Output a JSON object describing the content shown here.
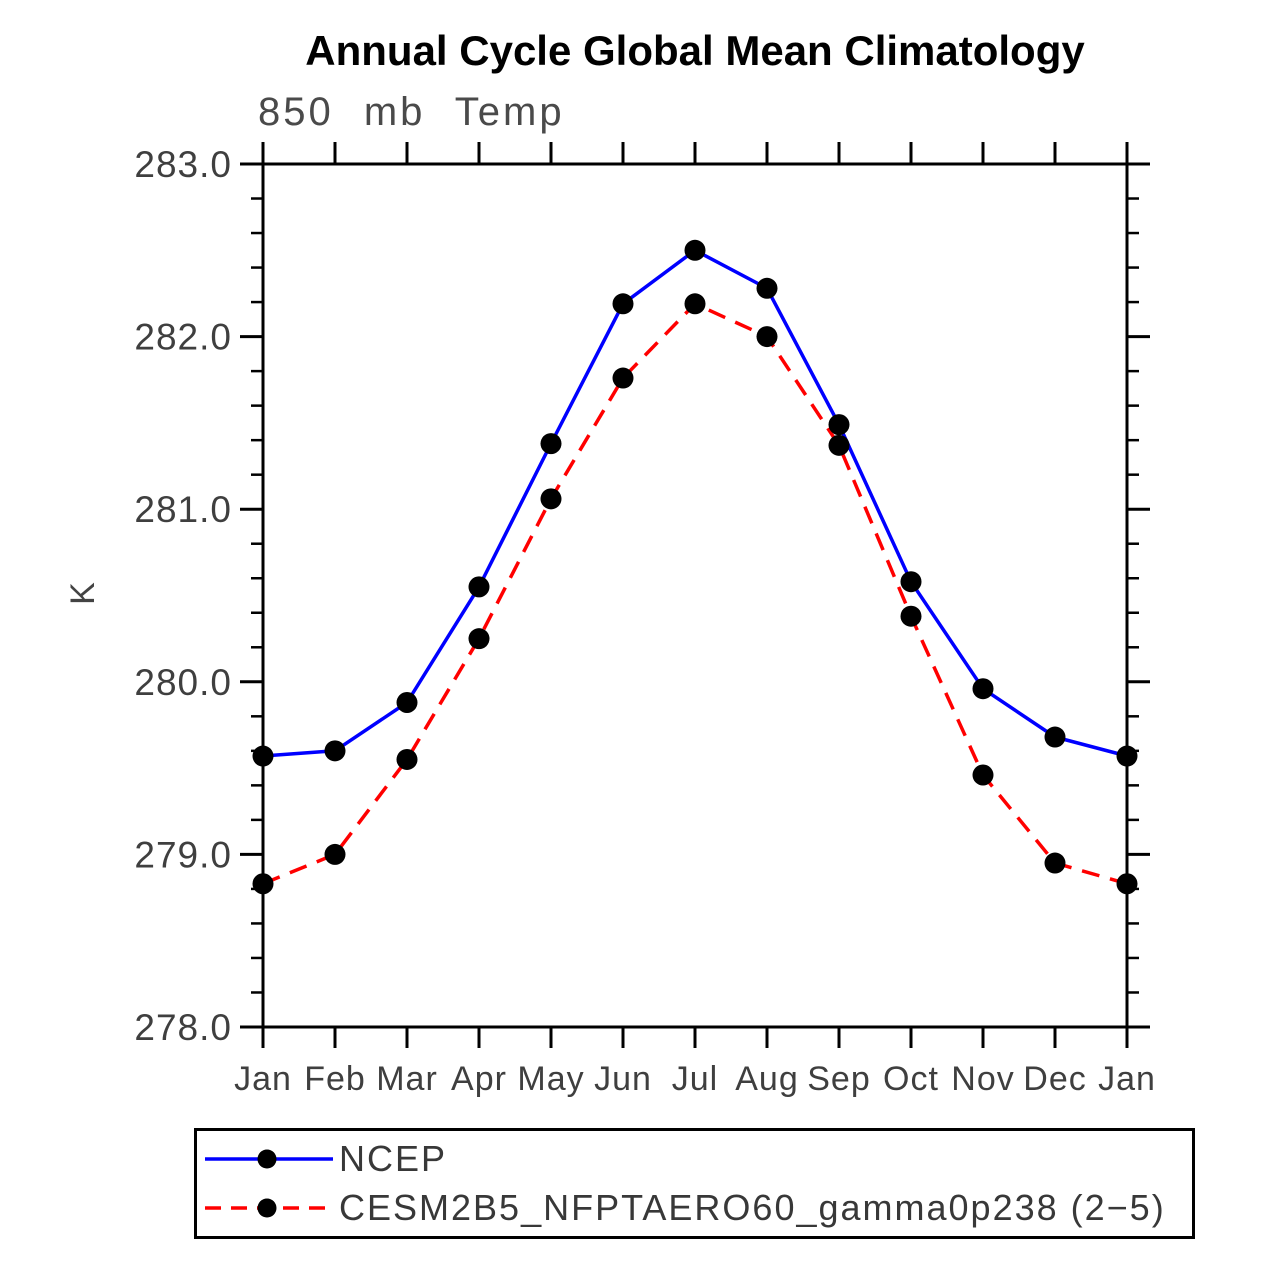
{
  "chart_data": {
    "type": "line",
    "title": "Annual Cycle Global Mean Climatology",
    "subtitle": "850 mb Temp",
    "ylabel": "K",
    "categories": [
      "Jan",
      "Feb",
      "Mar",
      "Apr",
      "May",
      "Jun",
      "Jul",
      "Aug",
      "Sep",
      "Oct",
      "Nov",
      "Dec",
      "Jan"
    ],
    "ylim": [
      278.0,
      283.0
    ],
    "yticks_major": [
      278.0,
      279.0,
      280.0,
      281.0,
      282.0,
      283.0
    ],
    "ytick_labels": [
      "278.0",
      "279.0",
      "280.0",
      "281.0",
      "282.0",
      "283.0"
    ],
    "minor_tick_interval": 0.2,
    "grid": false,
    "legend_position": "bottom-left",
    "series": [
      {
        "name": "NCEP",
        "color": "#0000ff",
        "line_style": "solid",
        "marker": "circle",
        "marker_color": "#000000",
        "values": [
          279.57,
          279.6,
          279.88,
          280.55,
          281.38,
          282.19,
          282.5,
          282.28,
          281.49,
          280.58,
          279.96,
          279.68,
          279.57
        ]
      },
      {
        "name": "CESM2B5_NFPTAERO60_gamma0p238 (2−5)",
        "color": "#ff0000",
        "line_style": "dashed",
        "marker": "circle",
        "marker_color": "#000000",
        "values": [
          278.83,
          279.0,
          279.55,
          280.25,
          281.06,
          281.76,
          282.19,
          282.0,
          281.37,
          280.38,
          279.46,
          278.95,
          278.83
        ]
      }
    ]
  }
}
